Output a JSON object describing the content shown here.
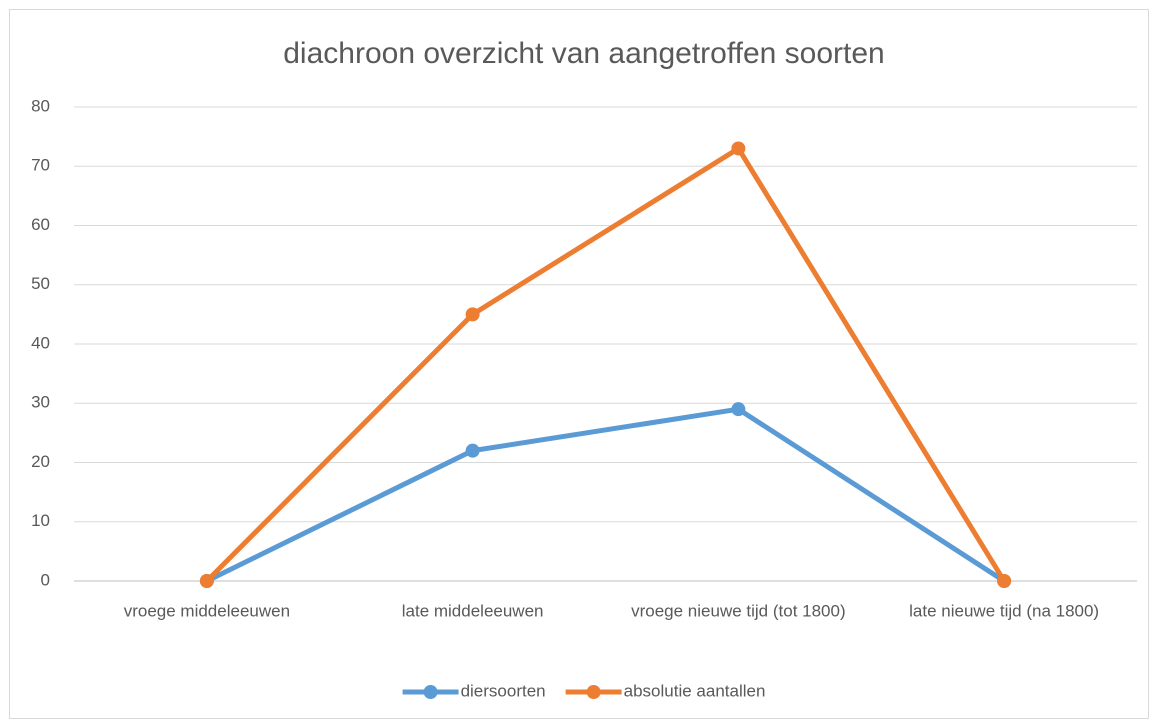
{
  "chart_data": {
    "type": "line",
    "title": "diachroon overzicht van aangetroffen soorten",
    "categories": [
      "vroege middeleeuwen",
      "late middeleeuwen",
      "vroege nieuwe tijd (tot 1800)",
      "late nieuwe tijd (na 1800)"
    ],
    "series": [
      {
        "name": "diersoorten",
        "color": "#5b9bd5",
        "values": [
          0,
          22,
          29,
          0
        ]
      },
      {
        "name": "absolutie aantallen",
        "color": "#ed7d31",
        "values": [
          0,
          45,
          73,
          0
        ]
      }
    ],
    "ylim": [
      0,
      80
    ],
    "yticks": [
      0,
      10,
      20,
      30,
      40,
      50,
      60,
      70,
      80
    ],
    "grid": true,
    "legend": "bottom"
  }
}
